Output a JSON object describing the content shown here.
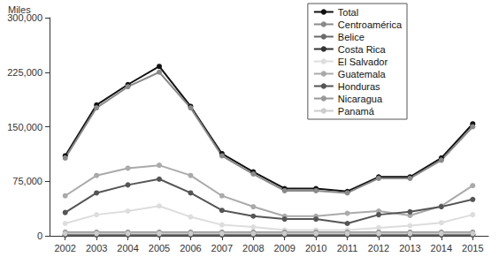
{
  "chart_data": {
    "type": "line",
    "y_label": "Miles",
    "categories": [
      "2002",
      "2003",
      "2004",
      "2005",
      "2006",
      "2007",
      "2008",
      "2009",
      "2010",
      "2011",
      "2012",
      "2013",
      "2014",
      "2015"
    ],
    "series": [
      {
        "name": "Total",
        "color": "#111111",
        "values": [
          110000,
          180000,
          208000,
          233000,
          178000,
          113000,
          88000,
          65000,
          65000,
          61000,
          81000,
          81000,
          107000,
          154000
        ]
      },
      {
        "name": "Centroamérica",
        "color": "#8a8a8a",
        "values": [
          107000,
          176000,
          205000,
          225000,
          176000,
          110000,
          85000,
          62000,
          62000,
          59000,
          79000,
          79000,
          104000,
          150000
        ]
      },
      {
        "name": "Belice",
        "color": "#6a6a6a",
        "values": [
          1000,
          1000,
          1000,
          1000,
          1000,
          1000,
          1000,
          1000,
          1000,
          1000,
          1000,
          1000,
          1000,
          1000
        ]
      },
      {
        "name": "Costa Rica",
        "color": "#333333",
        "values": [
          2000,
          2000,
          2000,
          2000,
          2000,
          2000,
          2000,
          2000,
          2000,
          2000,
          2000,
          2000,
          2000,
          2000
        ]
      },
      {
        "name": "El Salvador",
        "color": "#dddddd",
        "values": [
          17000,
          29000,
          34000,
          41000,
          26000,
          15000,
          12000,
          8000,
          8000,
          8000,
          11000,
          14000,
          18000,
          29000
        ]
      },
      {
        "name": "Guatemala",
        "color": "#aaaaaa",
        "values": [
          55000,
          83000,
          93000,
          97000,
          83000,
          55000,
          40000,
          27000,
          27000,
          31000,
          34000,
          28000,
          41000,
          69000
        ]
      },
      {
        "name": "Honduras",
        "color": "#555555",
        "values": [
          32000,
          59000,
          70000,
          78000,
          59000,
          35000,
          27000,
          23000,
          23000,
          17000,
          29000,
          33000,
          40000,
          50000
        ]
      },
      {
        "name": "Nicaragua",
        "color": "#999999",
        "values": [
          5000,
          5000,
          5000,
          5000,
          5000,
          5000,
          5000,
          5000,
          5000,
          5000,
          5000,
          5000,
          5000,
          5000
        ]
      },
      {
        "name": "Panamá",
        "color": "#cccccc",
        "values": [
          3000,
          3000,
          3000,
          3000,
          3000,
          3000,
          3000,
          3000,
          3000,
          3000,
          3000,
          3000,
          3000,
          3000
        ]
      }
    ],
    "ylim": [
      0,
      300000
    ],
    "yticks": [
      0,
      {
        "value": 75000,
        "label": "75,000"
      },
      {
        "value": 150000,
        "label": "150,000"
      },
      {
        "value": 225000,
        "label": "225,000"
      },
      {
        "value": 300000,
        "label": "300,000"
      }
    ],
    "grid": false,
    "legend": "top-right",
    "marker": "circle"
  }
}
